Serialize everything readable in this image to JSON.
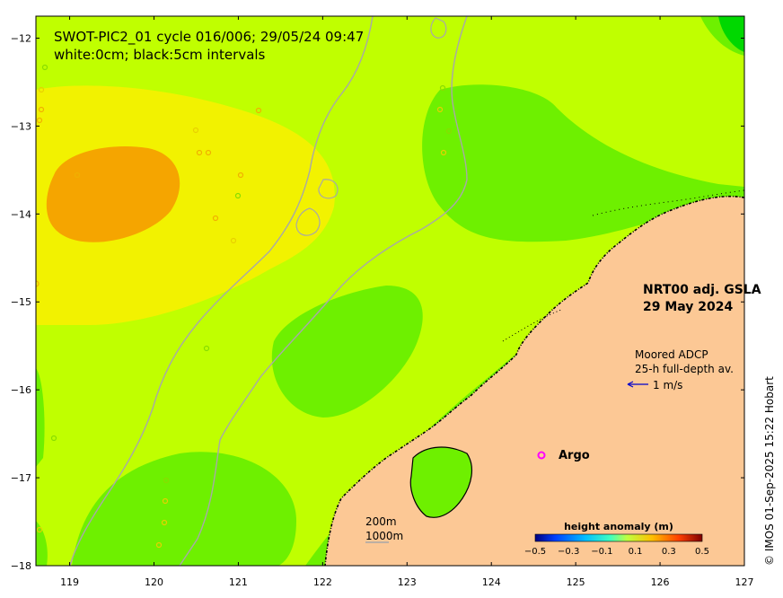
{
  "title": {
    "line1": "SWOT-PIC2_01 cycle 016/006; 29/05/24 09:47",
    "line2": "white:0cm; black:5cm intervals"
  },
  "product": {
    "name": "NRT00 adj. GSLA",
    "date": "29 May 2024"
  },
  "adcp_legend": {
    "line1": "Moored ADCP",
    "line2": "25-h full-depth av.",
    "scale_label": "1 m/s",
    "arrow_color": "#0000cc"
  },
  "argo_legend": {
    "label": "Argo",
    "marker_color": "#ff00ff"
  },
  "depth_legend": {
    "contour_1": "200m",
    "contour_2": "1000m"
  },
  "colorbar": {
    "label": "height anomaly (m)",
    "ticks": [
      "−0.5",
      "−0.3",
      "−0.1",
      "0.1",
      "0.3",
      "0.5"
    ],
    "colors": [
      "#00007f",
      "#0040ff",
      "#00bfff",
      "#40ffbf",
      "#bfff40",
      "#ffbf00",
      "#ff4000",
      "#7f0000"
    ]
  },
  "credit": "© IMOS 01-Sep-2025 15:22 Hobart",
  "axes": {
    "x_ticks": [
      "119",
      "120",
      "121",
      "122",
      "123",
      "124",
      "125",
      "126",
      "127"
    ],
    "y_ticks": [
      "−12",
      "−13",
      "−14",
      "−15",
      "−16",
      "−17",
      "−18"
    ],
    "xlim": [
      118.6,
      127
    ],
    "ylim": [
      -18,
      -11.75
    ]
  },
  "colors": {
    "land": "#fcc895",
    "anomaly_base": "#c0ff00",
    "anomaly_high": "#f2f200",
    "anomaly_max": "#f5a500",
    "anomaly_low": "#6ef000",
    "anomaly_min": "#00d800",
    "contour_depth": "#a8a8a8"
  }
}
